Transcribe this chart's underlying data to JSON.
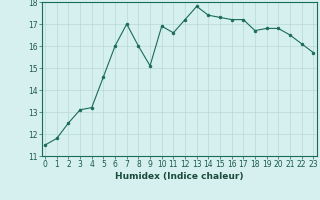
{
  "x": [
    0,
    1,
    2,
    3,
    4,
    5,
    6,
    7,
    8,
    9,
    10,
    11,
    12,
    13,
    14,
    15,
    16,
    17,
    18,
    19,
    20,
    21,
    22,
    23
  ],
  "y": [
    11.5,
    11.8,
    12.5,
    13.1,
    13.2,
    14.6,
    16.0,
    17.0,
    16.0,
    15.1,
    16.9,
    16.6,
    17.2,
    17.8,
    17.4,
    17.3,
    17.2,
    17.2,
    16.7,
    16.8,
    16.8,
    16.5,
    16.1,
    15.7
  ],
  "xlabel": "Humidex (Indice chaleur)",
  "ylim": [
    11,
    18
  ],
  "xlim": [
    -0.3,
    23.3
  ],
  "yticks": [
    11,
    12,
    13,
    14,
    15,
    16,
    17,
    18
  ],
  "xticks": [
    0,
    1,
    2,
    3,
    4,
    5,
    6,
    7,
    8,
    9,
    10,
    11,
    12,
    13,
    14,
    15,
    16,
    17,
    18,
    19,
    20,
    21,
    22,
    23
  ],
  "line_color": "#1a6b5a",
  "marker_color": "#1a6b5a",
  "bg_color": "#d6f0f0",
  "grid_color": "#b8d8d8",
  "tick_fontsize": 5.5,
  "xlabel_fontsize": 6.5,
  "linewidth": 0.8,
  "markersize": 2.0
}
